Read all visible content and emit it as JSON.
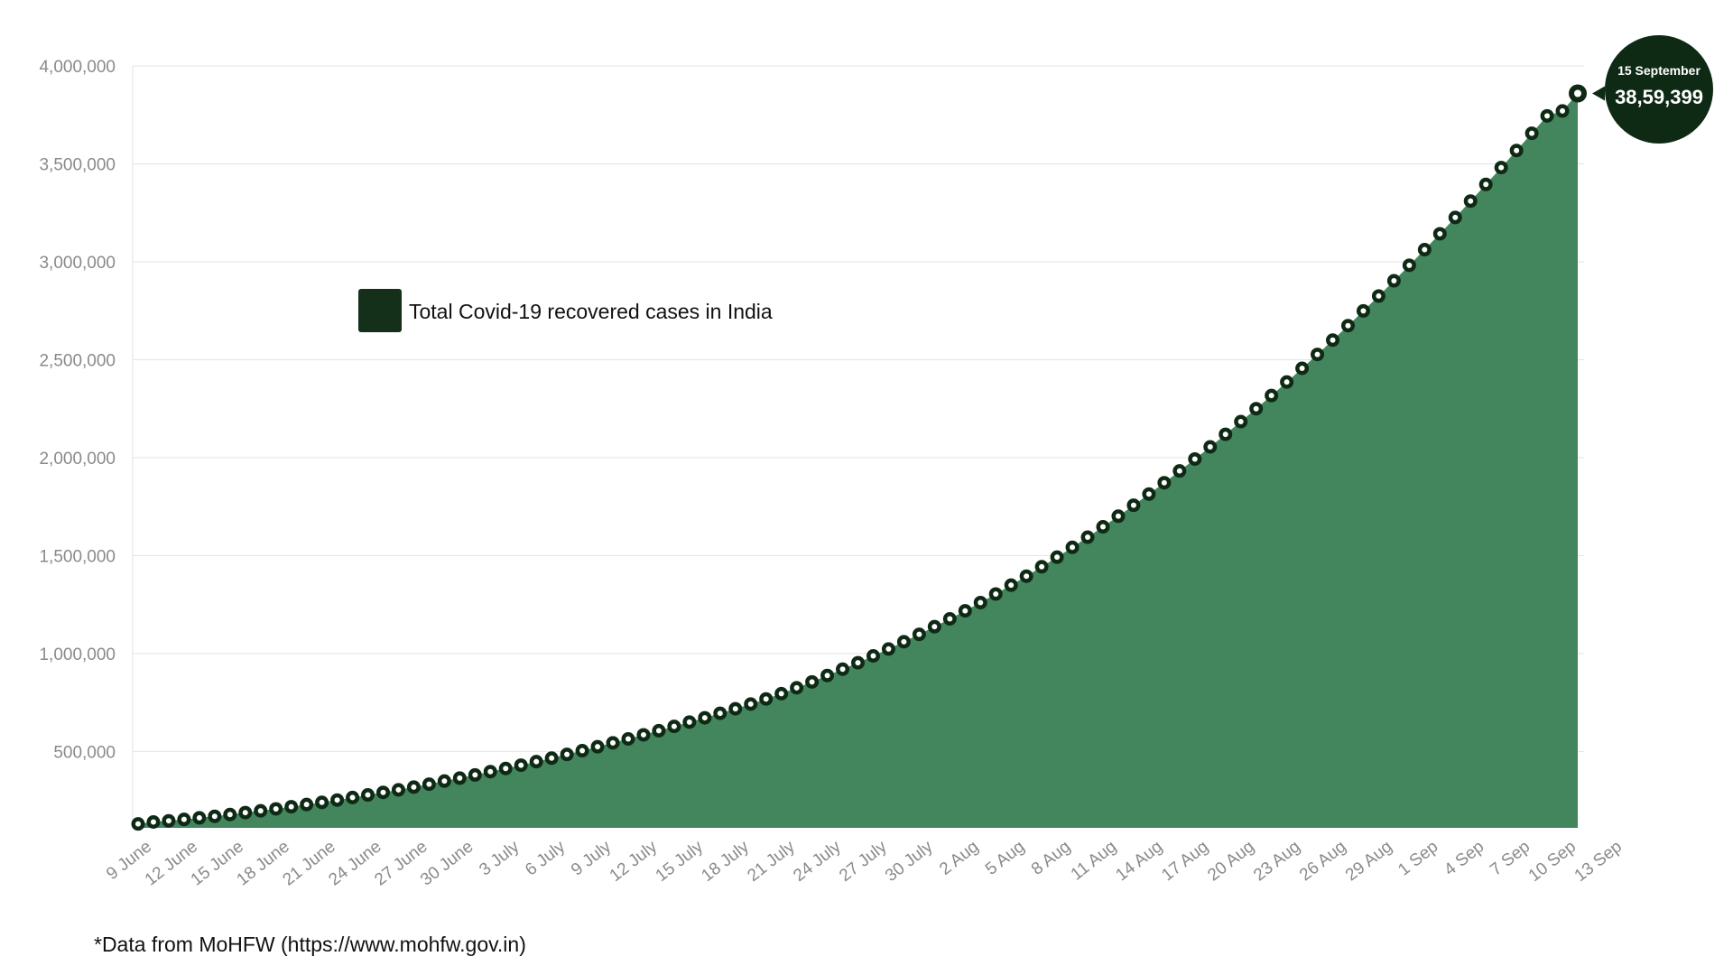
{
  "chart_data": {
    "type": "area",
    "series": [
      {
        "name": "Total Covid-19 recovered cases in India",
        "start_label": "9 June",
        "values": [
          130000,
          140000,
          146000,
          153000,
          161000,
          169000,
          178000,
          188000,
          197000,
          207000,
          218000,
          229000,
          240000,
          252000,
          265000,
          278000,
          291000,
          304000,
          318000,
          333000,
          349000,
          364000,
          380000,
          397000,
          413000,
          430000,
          448000,
          466000,
          485000,
          504000,
          524000,
          544000,
          564000,
          585000,
          606000,
          628000,
          650000,
          672000,
          695000,
          718000,
          742000,
          768000,
          795000,
          825000,
          855000,
          888000,
          920000,
          953000,
          988000,
          1023000,
          1060000,
          1098000,
          1137000,
          1177000,
          1218000,
          1260000,
          1304000,
          1349000,
          1395000,
          1443000,
          1492000,
          1542000,
          1594000,
          1647000,
          1701000,
          1757000,
          1814000,
          1872000,
          1932000,
          1993000,
          2055000,
          2119000,
          2184000,
          2250000,
          2317000,
          2386000,
          2456000,
          2527000,
          2600000,
          2674000,
          2749000,
          2825000,
          2903000,
          2982000,
          3062000,
          3143000,
          3226000,
          3310000,
          3395000,
          3481000,
          3568000,
          3656000,
          3745000,
          3770000,
          3859399
        ]
      }
    ],
    "x_tick_labels": [
      "9 June",
      "12 June",
      "15 June",
      "18 June",
      "21 June",
      "24 June",
      "27 June",
      "30 June",
      "3 July",
      "6 July",
      "9 July",
      "12 July",
      "15 July",
      "18 July",
      "21 July",
      "24 July",
      "27 July",
      "30 July",
      "2 Aug",
      "5 Aug",
      "8 Aug",
      "11 Aug",
      "14 Aug",
      "17 Aug",
      "20 Aug",
      "23 Aug",
      "26 Aug",
      "29 Aug",
      "1 Sep",
      "4 Sep",
      "7 Sep",
      "10 Sep",
      "13 Sep"
    ],
    "y_ticks": [
      500000,
      1000000,
      1500000,
      2000000,
      2500000,
      3000000,
      3500000,
      4000000
    ],
    "y_tick_labels": [
      "500,000",
      "1,000,000",
      "1,500,000",
      "2,000,000",
      "2,500,000",
      "3,000,000",
      "3,500,000",
      "4,000,000"
    ],
    "ylim": [
      110000,
      4000000
    ],
    "grid": true,
    "legend_position": "upper-left",
    "title": "",
    "xlabel": "",
    "ylabel": "",
    "callout": {
      "date": "15 September",
      "value": "38,59,399"
    },
    "colors": {
      "area": "#43855d",
      "marker": "#0f2a14",
      "marker_center": "#ffffff",
      "legend_swatch": "#14301a",
      "callout_bg": "#0f2a14"
    }
  },
  "footnote": "*Data from MoHFW (https://www.mohfw.gov.in)"
}
